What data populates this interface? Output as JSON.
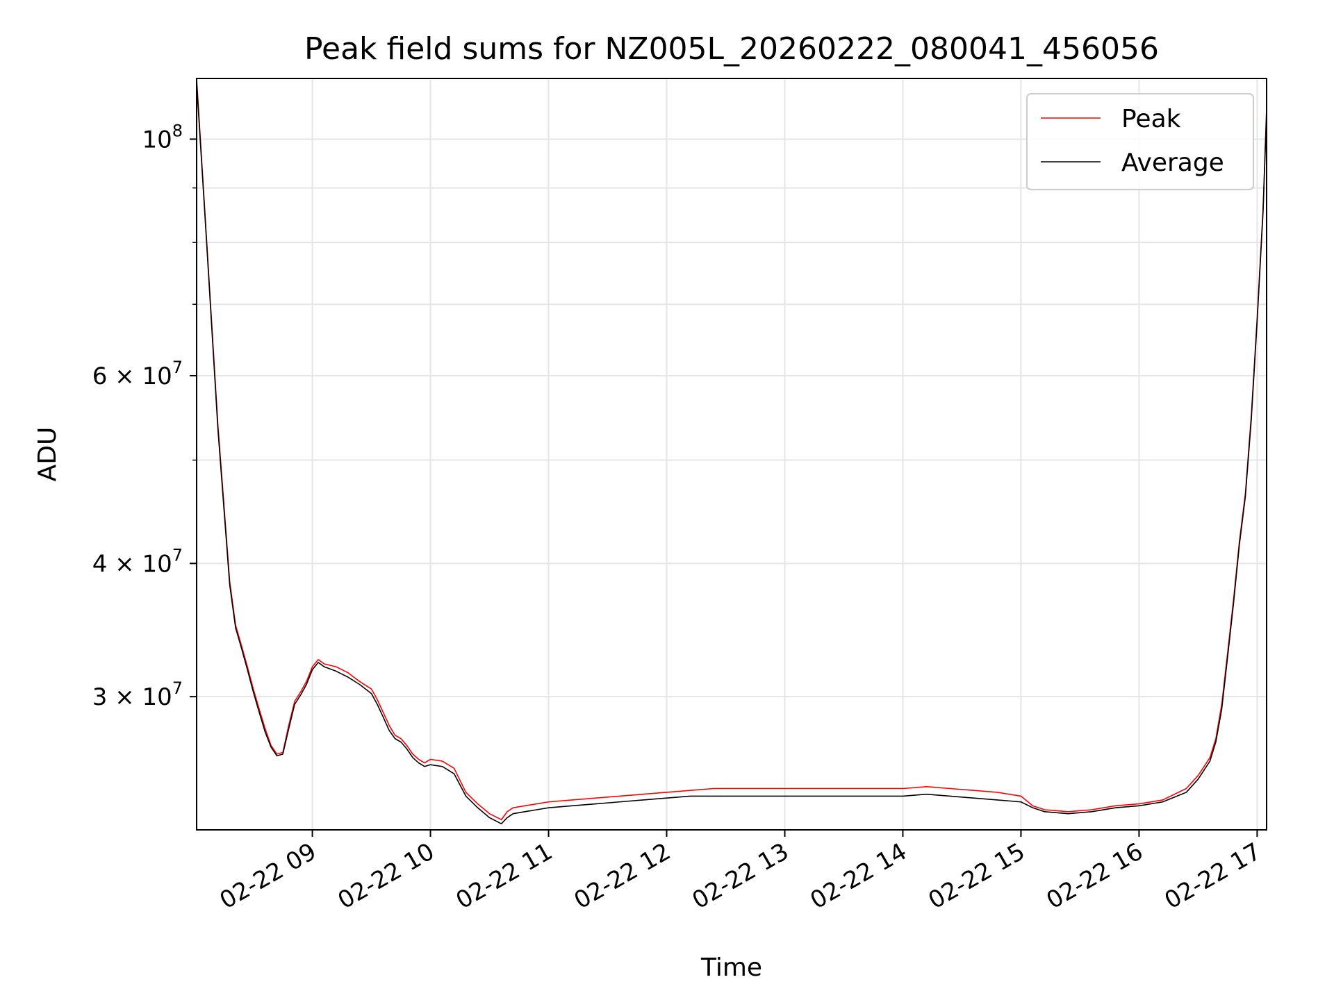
{
  "chart_data": {
    "type": "line",
    "title": "Peak field sums for NZ005L_20260222_080041_456056",
    "xlabel": "Time",
    "ylabel": "ADU",
    "yscale": "log",
    "xlim_hours": [
      8.02,
      17.08
    ],
    "ylim": [
      22500000,
      114000000
    ],
    "grid": true,
    "legend_position": "top-right",
    "x_ticks": [
      {
        "value": 9,
        "label": "02-22 09"
      },
      {
        "value": 10,
        "label": "02-22 10"
      },
      {
        "value": 11,
        "label": "02-22 11"
      },
      {
        "value": 12,
        "label": "02-22 12"
      },
      {
        "value": 13,
        "label": "02-22 13"
      },
      {
        "value": 14,
        "label": "02-22 14"
      },
      {
        "value": 15,
        "label": "02-22 15"
      },
      {
        "value": 16,
        "label": "02-22 16"
      },
      {
        "value": 17,
        "label": "02-22 17"
      }
    ],
    "y_major_ticks": [
      {
        "value": 100000000,
        "base": "10",
        "exp": "8"
      },
      {
        "value": 60000000,
        "mant": "6",
        "base": "10",
        "exp": "7"
      },
      {
        "value": 40000000,
        "mant": "4",
        "base": "10",
        "exp": "7"
      },
      {
        "value": 30000000,
        "mant": "3",
        "base": "10",
        "exp": "7"
      }
    ],
    "y_minor_ticks": [
      90000000,
      80000000,
      70000000,
      50000000
    ],
    "series": [
      {
        "name": "Peak",
        "color": "#ff0000",
        "x": [
          8.02,
          8.1,
          8.2,
          8.3,
          8.35,
          8.4,
          8.45,
          8.5,
          8.55,
          8.6,
          8.65,
          8.7,
          8.75,
          8.8,
          8.85,
          8.9,
          8.95,
          9.0,
          9.05,
          9.1,
          9.2,
          9.3,
          9.4,
          9.5,
          9.55,
          9.6,
          9.65,
          9.7,
          9.75,
          9.8,
          9.85,
          9.9,
          9.95,
          10.0,
          10.1,
          10.2,
          10.3,
          10.4,
          10.5,
          10.6,
          10.65,
          10.7,
          10.8,
          10.9,
          11.0,
          11.2,
          11.4,
          11.6,
          11.8,
          12.0,
          12.2,
          12.4,
          12.6,
          12.8,
          13.0,
          13.2,
          13.4,
          13.6,
          13.8,
          14.0,
          14.2,
          14.4,
          14.6,
          14.8,
          15.0,
          15.1,
          15.2,
          15.4,
          15.6,
          15.8,
          16.0,
          16.2,
          16.4,
          16.5,
          16.6,
          16.65,
          16.7,
          16.75,
          16.8,
          16.85,
          16.9,
          16.95,
          17.0,
          17.05,
          17.08
        ],
        "y": [
          114000000,
          82000000,
          54000000,
          38500000,
          35000000,
          33500000,
          32000000,
          30500000,
          29200000,
          28000000,
          27000000,
          26500000,
          26600000,
          28200000,
          29700000,
          30300000,
          31000000,
          32000000,
          32500000,
          32200000,
          32000000,
          31600000,
          31000000,
          30500000,
          29800000,
          29000000,
          28200000,
          27600000,
          27400000,
          27000000,
          26500000,
          26200000,
          26000000,
          26200000,
          26100000,
          25700000,
          24400000,
          23800000,
          23300000,
          23000000,
          23400000,
          23600000,
          23700000,
          23800000,
          23900000,
          24000000,
          24100000,
          24200000,
          24300000,
          24400000,
          24500000,
          24600000,
          24600000,
          24600000,
          24600000,
          24600000,
          24600000,
          24600000,
          24600000,
          24600000,
          24700000,
          24600000,
          24500000,
          24400000,
          24200000,
          23700000,
          23500000,
          23400000,
          23500000,
          23700000,
          23800000,
          24000000,
          24600000,
          25300000,
          26300000,
          27400000,
          29500000,
          33000000,
          37000000,
          42000000,
          46500000,
          55000000,
          68000000,
          86000000,
          107000000
        ]
      },
      {
        "name": "Average",
        "color": "#000000",
        "x": [
          8.02,
          8.1,
          8.2,
          8.3,
          8.35,
          8.4,
          8.45,
          8.5,
          8.55,
          8.6,
          8.65,
          8.7,
          8.75,
          8.8,
          8.85,
          8.9,
          8.95,
          9.0,
          9.05,
          9.1,
          9.2,
          9.3,
          9.4,
          9.5,
          9.55,
          9.6,
          9.65,
          9.7,
          9.75,
          9.8,
          9.85,
          9.9,
          9.95,
          10.0,
          10.1,
          10.2,
          10.3,
          10.4,
          10.5,
          10.6,
          10.65,
          10.7,
          10.8,
          10.9,
          11.0,
          11.2,
          11.4,
          11.6,
          11.8,
          12.0,
          12.2,
          12.4,
          12.6,
          12.8,
          13.0,
          13.2,
          13.4,
          13.6,
          13.8,
          14.0,
          14.2,
          14.4,
          14.6,
          14.8,
          15.0,
          15.1,
          15.2,
          15.4,
          15.6,
          15.8,
          16.0,
          16.2,
          16.4,
          16.5,
          16.6,
          16.65,
          16.7,
          16.75,
          16.8,
          16.85,
          16.9,
          16.95,
          17.0,
          17.05,
          17.08
        ],
        "y": [
          113000000,
          81500000,
          53500000,
          38200000,
          34800000,
          33300000,
          31800000,
          30300000,
          29000000,
          27800000,
          26900000,
          26400000,
          26500000,
          28000000,
          29500000,
          30100000,
          30800000,
          31800000,
          32300000,
          32000000,
          31700000,
          31300000,
          30800000,
          30200000,
          29500000,
          28700000,
          27900000,
          27400000,
          27200000,
          26800000,
          26300000,
          26000000,
          25800000,
          25900000,
          25800000,
          25400000,
          24200000,
          23600000,
          23100000,
          22800000,
          23100000,
          23300000,
          23400000,
          23500000,
          23600000,
          23700000,
          23800000,
          23900000,
          24000000,
          24100000,
          24200000,
          24200000,
          24200000,
          24200000,
          24200000,
          24200000,
          24200000,
          24200000,
          24200000,
          24200000,
          24300000,
          24200000,
          24100000,
          24000000,
          23900000,
          23600000,
          23400000,
          23300000,
          23400000,
          23600000,
          23700000,
          23900000,
          24400000,
          25100000,
          26100000,
          27200000,
          29200000,
          32700000,
          36700000,
          41700000,
          46200000,
          54500000,
          67500000,
          85500000,
          106000000
        ]
      }
    ]
  }
}
